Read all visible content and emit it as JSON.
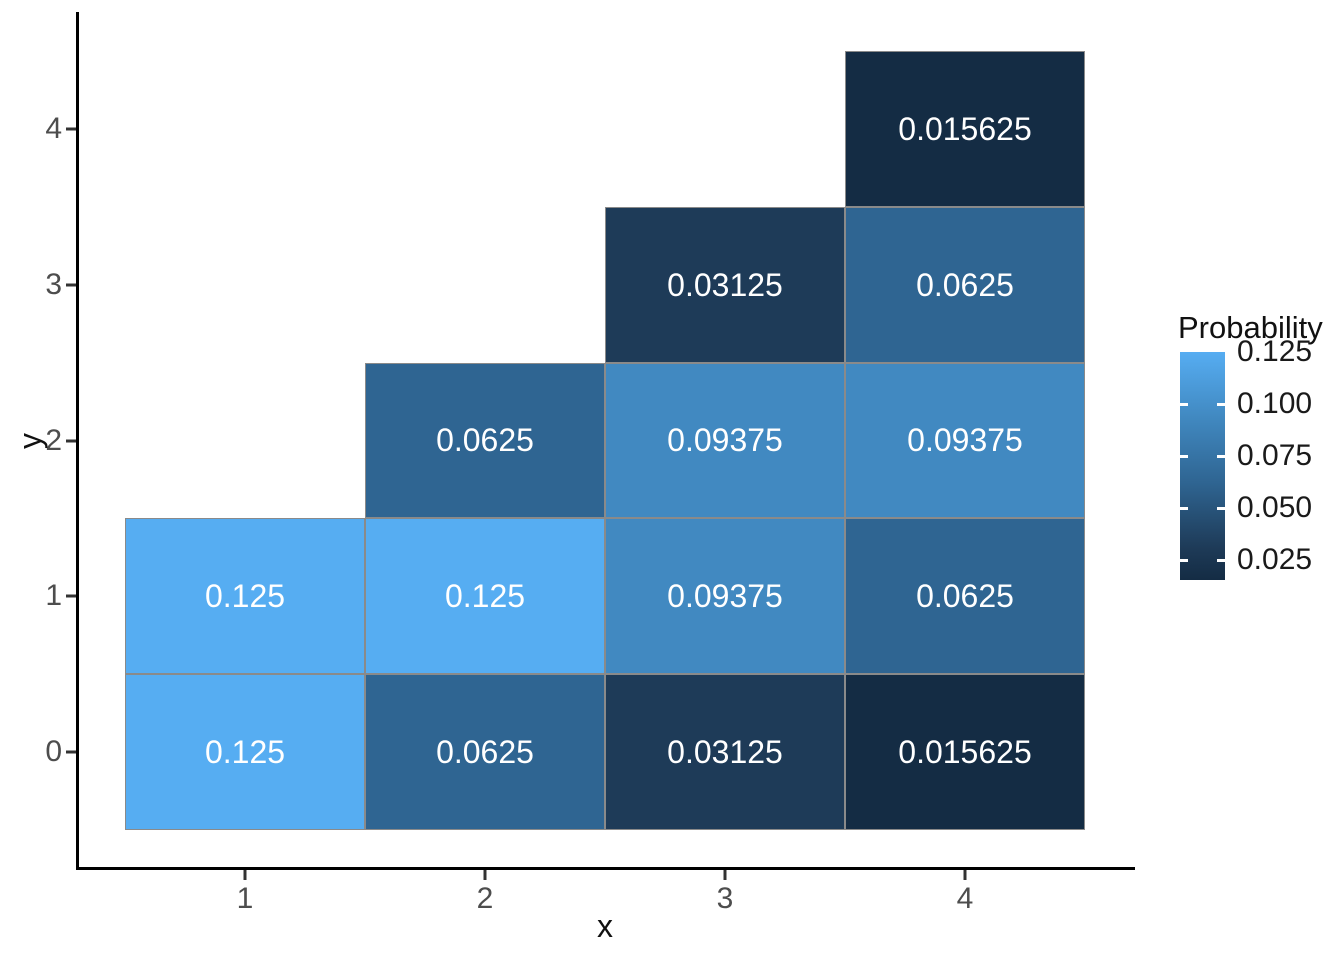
{
  "chart_data": {
    "type": "heatmap",
    "title": "",
    "xlabel": "x",
    "ylabel": "y",
    "legend_title": "Probability",
    "grid": false,
    "legend_position": "right",
    "x_ticks": [
      "1",
      "2",
      "3",
      "4"
    ],
    "x_tick_values": [
      1,
      2,
      3,
      4
    ],
    "y_ticks": [
      "0",
      "1",
      "2",
      "3",
      "4"
    ],
    "y_tick_values": [
      0,
      1,
      2,
      3,
      4
    ],
    "x_range": [
      0.3,
      4.7
    ],
    "y_range": [
      -0.75,
      4.75
    ],
    "tile_width": 1,
    "tile_height": 1,
    "value_domain": [
      0.015625,
      0.125
    ],
    "legend_ticks": [
      "0.125",
      "0.100",
      "0.075",
      "0.050",
      "0.025"
    ],
    "legend_tick_values": [
      0.125,
      0.1,
      0.075,
      0.05,
      0.025
    ],
    "colors": {
      "background": "#ffffff",
      "axis_line": "#000000",
      "tick_label": "#4d4d4d",
      "tile_border": "#8a8a8a",
      "tile_text": "#ffffff",
      "low": "#142c44",
      "high": "#56b1f7"
    },
    "value_colors": {
      "0.125": "#56adf2",
      "0.09375": "#4189c1",
      "0.0625": "#2f6592",
      "0.03125": "#1e3b58",
      "0.015625": "#142c44"
    },
    "tiles": [
      {
        "x": 1,
        "y": 0,
        "value": 0.125,
        "label": "0.125"
      },
      {
        "x": 2,
        "y": 0,
        "value": 0.0625,
        "label": "0.0625"
      },
      {
        "x": 3,
        "y": 0,
        "value": 0.03125,
        "label": "0.03125"
      },
      {
        "x": 4,
        "y": 0,
        "value": 0.015625,
        "label": "0.015625"
      },
      {
        "x": 1,
        "y": 1,
        "value": 0.125,
        "label": "0.125"
      },
      {
        "x": 2,
        "y": 1,
        "value": 0.125,
        "label": "0.125"
      },
      {
        "x": 3,
        "y": 1,
        "value": 0.09375,
        "label": "0.09375"
      },
      {
        "x": 4,
        "y": 1,
        "value": 0.0625,
        "label": "0.0625"
      },
      {
        "x": 2,
        "y": 2,
        "value": 0.0625,
        "label": "0.0625"
      },
      {
        "x": 3,
        "y": 2,
        "value": 0.09375,
        "label": "0.09375"
      },
      {
        "x": 4,
        "y": 2,
        "value": 0.09375,
        "label": "0.09375"
      },
      {
        "x": 3,
        "y": 3,
        "value": 0.03125,
        "label": "0.03125"
      },
      {
        "x": 4,
        "y": 3,
        "value": 0.0625,
        "label": "0.0625"
      },
      {
        "x": 4,
        "y": 4,
        "value": 0.015625,
        "label": "0.015625"
      }
    ]
  }
}
